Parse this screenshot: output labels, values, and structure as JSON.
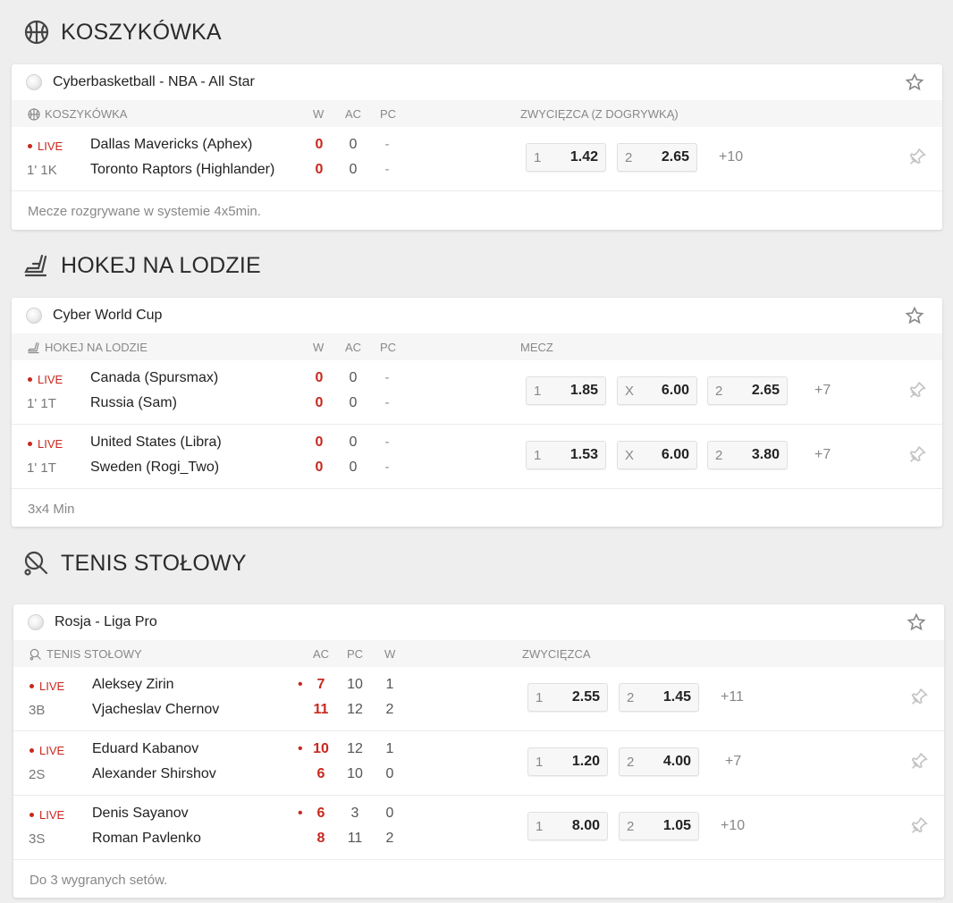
{
  "sections": [
    {
      "icon": "basketball-icon",
      "title": "KOSZYKÓWKA",
      "league": "Cyberbasketball - NBA - All Star",
      "sport_label": "KOSZYKÓWKA",
      "score_cols": [
        "W",
        "AC",
        "PC"
      ],
      "market": "ZWYCIĘZCA (Z DOGRYWKĄ)",
      "matches": [
        {
          "status": "LIVE",
          "period": "1' 1K",
          "team1": "Dallas Mavericks (Aphex)",
          "team2": "Toronto Raptors (Highlander)",
          "s1": [
            "0",
            "0",
            "-"
          ],
          "s2": [
            "0",
            "0",
            "-"
          ],
          "odds": [
            {
              "label": "1",
              "value": "1.42"
            },
            {
              "label": "2",
              "value": "2.65"
            }
          ],
          "more": "+10"
        }
      ],
      "footer": "Mecze rozgrywane w systemie 4x5min."
    },
    {
      "icon": "ice-skate-icon",
      "title": "HOKEJ NA LODZIE",
      "league": "Cyber World Cup",
      "sport_label": "HOKEJ NA LODZIE",
      "score_cols": [
        "W",
        "AC",
        "PC"
      ],
      "market": "MECZ",
      "matches": [
        {
          "status": "LIVE",
          "period": "1' 1T",
          "team1": "Canada (Spursmax)",
          "team2": "Russia (Sam)",
          "s1": [
            "0",
            "0",
            "-"
          ],
          "s2": [
            "0",
            "0",
            "-"
          ],
          "odds": [
            {
              "label": "1",
              "value": "1.85"
            },
            {
              "label": "X",
              "value": "6.00"
            },
            {
              "label": "2",
              "value": "2.65"
            }
          ],
          "more": "+7"
        },
        {
          "status": "LIVE",
          "period": "1' 1T",
          "team1": "United States (Libra)",
          "team2": "Sweden (Rogi_Two)",
          "s1": [
            "0",
            "0",
            "-"
          ],
          "s2": [
            "0",
            "0",
            "-"
          ],
          "odds": [
            {
              "label": "1",
              "value": "1.53"
            },
            {
              "label": "X",
              "value": "6.00"
            },
            {
              "label": "2",
              "value": "3.80"
            }
          ],
          "more": "+7"
        }
      ],
      "footer": "3x4 Min"
    },
    {
      "icon": "table-tennis-icon",
      "title": "TENIS STOŁOWY",
      "league": "Rosja - Liga Pro",
      "sport_label": "TENIS STOŁOWY",
      "score_cols": [
        "AC",
        "PC",
        "W"
      ],
      "market": "ZWYCIĘZCA",
      "matches": [
        {
          "status": "LIVE",
          "period": "3B",
          "team1": "Aleksey Zirin",
          "team2": "Vjacheslav Chernov",
          "s1": [
            "7",
            "10",
            "1"
          ],
          "s2": [
            "11",
            "12",
            "2"
          ],
          "odds": [
            {
              "label": "1",
              "value": "2.55"
            },
            {
              "label": "2",
              "value": "1.45"
            }
          ],
          "more": "+11"
        },
        {
          "status": "LIVE",
          "period": "2S",
          "team1": "Eduard Kabanov",
          "team2": "Alexander Shirshov",
          "s1": [
            "10",
            "12",
            "1"
          ],
          "s2": [
            "6",
            "10",
            "0"
          ],
          "odds": [
            {
              "label": "1",
              "value": "1.20"
            },
            {
              "label": "2",
              "value": "4.00"
            }
          ],
          "more": "+7"
        },
        {
          "status": "LIVE",
          "period": "3S",
          "team1": "Denis Sayanov",
          "team2": "Roman Pavlenko",
          "s1": [
            "6",
            "3",
            "0"
          ],
          "s2": [
            "8",
            "11",
            "2"
          ],
          "odds": [
            {
              "label": "1",
              "value": "8.00"
            },
            {
              "label": "2",
              "value": "1.05"
            }
          ],
          "more": "+10"
        }
      ],
      "footer": "Do 3 wygranych setów."
    }
  ]
}
